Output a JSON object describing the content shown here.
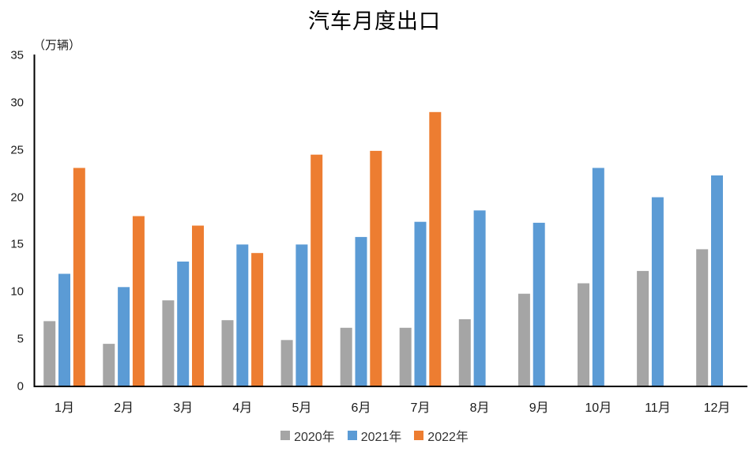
{
  "page": {
    "title": "汽车月度出口",
    "unit_label": "（万辆）"
  },
  "chart_data": {
    "type": "bar",
    "title": "汽车月度出口",
    "unit": "万辆",
    "categories": [
      "1月",
      "2月",
      "3月",
      "4月",
      "5月",
      "6月",
      "7月",
      "8月",
      "9月",
      "10月",
      "11月",
      "12月"
    ],
    "series": [
      {
        "name": "2020年",
        "color": "#A5A5A5",
        "values": [
          6.9,
          4.5,
          9.1,
          7.0,
          4.9,
          6.2,
          6.2,
          7.1,
          9.8,
          10.9,
          12.2,
          14.5
        ]
      },
      {
        "name": "2021年",
        "color": "#5B9BD5",
        "values": [
          11.9,
          10.5,
          13.2,
          15.0,
          15.0,
          15.8,
          17.4,
          18.6,
          17.3,
          23.1,
          20.0,
          22.3
        ]
      },
      {
        "name": "2022年",
        "color": "#ED7D31",
        "values": [
          23.1,
          18.0,
          17.0,
          14.1,
          24.5,
          24.9,
          29.0,
          null,
          null,
          null,
          null,
          null
        ]
      }
    ],
    "ylim": [
      0,
      35
    ],
    "ytick_step": 5,
    "ytick_labels": [
      "0",
      "5",
      "10",
      "15",
      "20",
      "25",
      "30",
      "35"
    ],
    "grid": false,
    "legend_position": "bottom",
    "axis_color": "#000000",
    "tick_label_color": "#1a1a1a",
    "legend_text_color": "#333333",
    "background": "#ffffff"
  }
}
